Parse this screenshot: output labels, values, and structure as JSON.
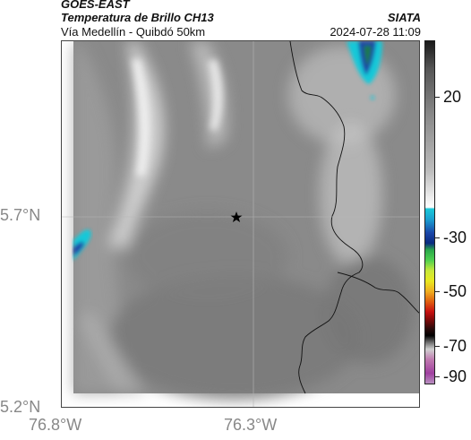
{
  "header": {
    "satellite": "GOES-EAST",
    "product": "Temperatura de Brillo CH13",
    "region": "Vía Medellín - Quibdó 50km",
    "organization": "SIATA",
    "timestamp": "2024-07-28 11:09"
  },
  "map": {
    "lat_labels": [
      "5.7°N",
      "5.2°N"
    ],
    "lon_labels": [
      "76.8°W",
      "76.3°W"
    ],
    "marker_icon": "star-icon"
  },
  "colorbar": {
    "labels": [
      "20",
      "-30",
      "-50",
      "-70",
      "-90"
    ]
  },
  "colors": {
    "background": "#ffffff",
    "cloud_gray": "#8a8a8a",
    "cold_cyan": "#19c8d8",
    "cold_blue": "#1a46a8",
    "cold_green": "#1d7a4a"
  }
}
